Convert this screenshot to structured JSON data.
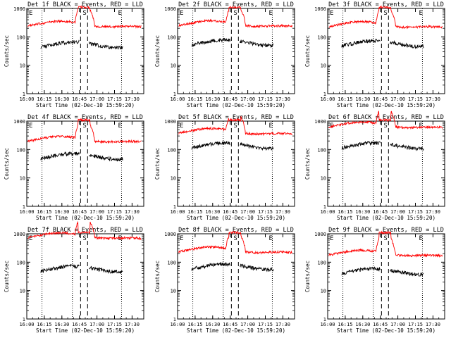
{
  "chart_data": [
    {
      "type": "line",
      "title": "Det 1f BLACK = Events, RED = LLD",
      "xlabel": "Start Time (02-Dec-10 15:59:20)",
      "ylabel": "Counts/sec",
      "yscale": "log",
      "ylim": [
        1,
        1000
      ],
      "yticks": [
        "1",
        "10",
        "100",
        "1000"
      ],
      "xticks": [
        "16:00",
        "16:15",
        "16:30",
        "16:45",
        "17:00",
        "17:15",
        "17:30"
      ],
      "markers": {
        "sunrise": "E",
        "saa": "S",
        "sunset": "E"
      },
      "series": [
        {
          "color": "#ff0000",
          "name": "LLD",
          "x_start": "16:01",
          "x_end": "17:38",
          "base_level": 270,
          "peak_level": 1100
        },
        {
          "color": "#000000",
          "name": "Events",
          "x_start": "16:12",
          "x_end": "17:22",
          "base_level": 50
        }
      ]
    },
    {
      "type": "line",
      "title": "Det 2f BLACK = Events, RED = LLD",
      "xlabel": "Start Time (02-Dec-10 15:59:20)",
      "ylabel": "Counts/sec",
      "yscale": "log",
      "ylim": [
        1,
        1000
      ],
      "yticks": [
        "1",
        "10",
        "100",
        "1000"
      ],
      "xticks": [
        "16:00",
        "16:15",
        "16:30",
        "16:45",
        "17:00",
        "17:15",
        "17:30"
      ],
      "markers": {
        "sunrise": "E",
        "saa": "S",
        "sunset": "E"
      },
      "series": [
        {
          "color": "#ff0000",
          "name": "LLD",
          "x_start": "16:01",
          "x_end": "17:38",
          "base_level": 280,
          "peak_level": 1100
        },
        {
          "color": "#000000",
          "name": "Events",
          "x_start": "16:12",
          "x_end": "17:22",
          "base_level": 60
        }
      ]
    },
    {
      "type": "line",
      "title": "Det 3f BLACK = Events, RED = LLD",
      "xlabel": "Start Time (02-Dec-10 15:59:20)",
      "ylabel": "Counts/sec",
      "yscale": "log",
      "ylim": [
        1,
        1000
      ],
      "yticks": [
        "1",
        "10",
        "100",
        "1000"
      ],
      "xticks": [
        "16:00",
        "16:15",
        "16:30",
        "16:45",
        "17:00",
        "17:15",
        "17:30"
      ],
      "markers": {
        "sunrise": "E",
        "saa": "S",
        "sunset": "E"
      },
      "series": [
        {
          "color": "#ff0000",
          "name": "LLD",
          "x_start": "16:01",
          "x_end": "17:38",
          "base_level": 260,
          "peak_level": 1100
        },
        {
          "color": "#000000",
          "name": "Events",
          "x_start": "16:12",
          "x_end": "17:22",
          "base_level": 55
        }
      ]
    },
    {
      "type": "line",
      "title": "Det 4f BLACK = Events, RED = LLD",
      "xlabel": "Start Time (02-Dec-10 15:59:20)",
      "ylabel": "Counts/sec",
      "yscale": "log",
      "ylim": [
        1,
        1000
      ],
      "yticks": [
        "1",
        "10",
        "100",
        "1000"
      ],
      "xticks": [
        "16:00",
        "16:15",
        "16:30",
        "16:45",
        "17:00",
        "17:15",
        "17:30"
      ],
      "markers": {
        "sunrise": "E",
        "saa": "S",
        "sunset": "E"
      },
      "series": [
        {
          "color": "#ff0000",
          "name": "LLD",
          "x_start": "16:01",
          "x_end": "17:38",
          "base_level": 220,
          "peak_level": 1100
        },
        {
          "color": "#000000",
          "name": "Events",
          "x_start": "16:12",
          "x_end": "17:22",
          "base_level": 55
        }
      ]
    },
    {
      "type": "line",
      "title": "Det 5f BLACK = Events, RED = LLD",
      "xlabel": "Start Time (02-Dec-10 15:59:20)",
      "ylabel": "Counts/sec",
      "yscale": "log",
      "ylim": [
        1,
        1000
      ],
      "yticks": [
        "1",
        "10",
        "100",
        "1000"
      ],
      "xticks": [
        "16:00",
        "16:15",
        "16:30",
        "16:45",
        "17:00",
        "17:15",
        "17:30"
      ],
      "markers": {
        "sunrise": "E",
        "saa": "S",
        "sunset": "E"
      },
      "series": [
        {
          "color": "#ff0000",
          "name": "LLD",
          "x_start": "16:01",
          "x_end": "17:38",
          "base_level": 420,
          "peak_level": 1100
        },
        {
          "color": "#000000",
          "name": "Events",
          "x_start": "16:12",
          "x_end": "17:22",
          "base_level": 130
        }
      ]
    },
    {
      "type": "line",
      "title": "Det 6f BLACK = Events, RED = LLD",
      "xlabel": "Start Time (02-Dec-10 15:59:20)",
      "ylabel": "Counts/sec",
      "yscale": "log",
      "ylim": [
        1,
        1000
      ],
      "yticks": [
        "1",
        "10",
        "100",
        "1000"
      ],
      "xticks": [
        "16:00",
        "16:15",
        "16:30",
        "16:45",
        "17:00",
        "17:15",
        "17:30"
      ],
      "markers": {
        "sunrise": "E",
        "saa": "S",
        "sunset": "E"
      },
      "series": [
        {
          "color": "#ff0000",
          "name": "LLD",
          "x_start": "16:01",
          "x_end": "17:38",
          "base_level": 700,
          "peak_level": 1100
        },
        {
          "color": "#000000",
          "name": "Events",
          "x_start": "16:12",
          "x_end": "17:22",
          "base_level": 130
        }
      ]
    },
    {
      "type": "line",
      "title": "Det 7f BLACK = Events, RED = LLD",
      "xlabel": "Start Time (02-Dec-10 15:59:20)",
      "ylabel": "Counts/sec",
      "yscale": "log",
      "ylim": [
        1,
        1000
      ],
      "yticks": [
        "1",
        "10",
        "100",
        "1000"
      ],
      "xticks": [
        "16:00",
        "16:15",
        "16:30",
        "16:45",
        "17:00",
        "17:15",
        "17:30"
      ],
      "markers": {
        "sunrise": "E",
        "saa": "S",
        "sunset": "E"
      },
      "series": [
        {
          "color": "#ff0000",
          "name": "LLD",
          "x_start": "16:01",
          "x_end": "17:38",
          "base_level": 820,
          "peak_level": 1100
        },
        {
          "color": "#000000",
          "name": "Events",
          "x_start": "16:12",
          "x_end": "17:22",
          "base_level": 55
        }
      ]
    },
    {
      "type": "line",
      "title": "Det 8f BLACK = Events, RED = LLD",
      "xlabel": "Start Time (02-Dec-10 15:59:20)",
      "ylabel": "Counts/sec",
      "yscale": "log",
      "ylim": [
        1,
        1000
      ],
      "yticks": [
        "1",
        "10",
        "100",
        "1000"
      ],
      "xticks": [
        "16:00",
        "16:15",
        "16:30",
        "16:45",
        "17:00",
        "17:15",
        "17:30"
      ],
      "markers": {
        "sunrise": "E",
        "saa": "S",
        "sunset": "E"
      },
      "series": [
        {
          "color": "#ff0000",
          "name": "LLD",
          "x_start": "16:01",
          "x_end": "17:38",
          "base_level": 260,
          "peak_level": 1100
        },
        {
          "color": "#000000",
          "name": "Events",
          "x_start": "16:12",
          "x_end": "17:22",
          "base_level": 65
        }
      ]
    },
    {
      "type": "line",
      "title": "Det 9f BLACK = Events, RED = LLD",
      "xlabel": "Start Time (02-Dec-10 15:59:20)",
      "ylabel": "Counts/sec",
      "yscale": "log",
      "ylim": [
        1,
        1000
      ],
      "yticks": [
        "1",
        "10",
        "100",
        "1000"
      ],
      "xticks": [
        "16:00",
        "16:15",
        "16:30",
        "16:45",
        "17:00",
        "17:15",
        "17:30"
      ],
      "markers": {
        "sunrise": "E",
        "saa": "S",
        "sunset": "E"
      },
      "series": [
        {
          "color": "#ff0000",
          "name": "LLD",
          "x_start": "16:01",
          "x_end": "17:38",
          "base_level": 200,
          "peak_level": 1100
        },
        {
          "color": "#000000",
          "name": "Events",
          "x_start": "16:12",
          "x_end": "17:22",
          "base_level": 45
        }
      ]
    }
  ]
}
